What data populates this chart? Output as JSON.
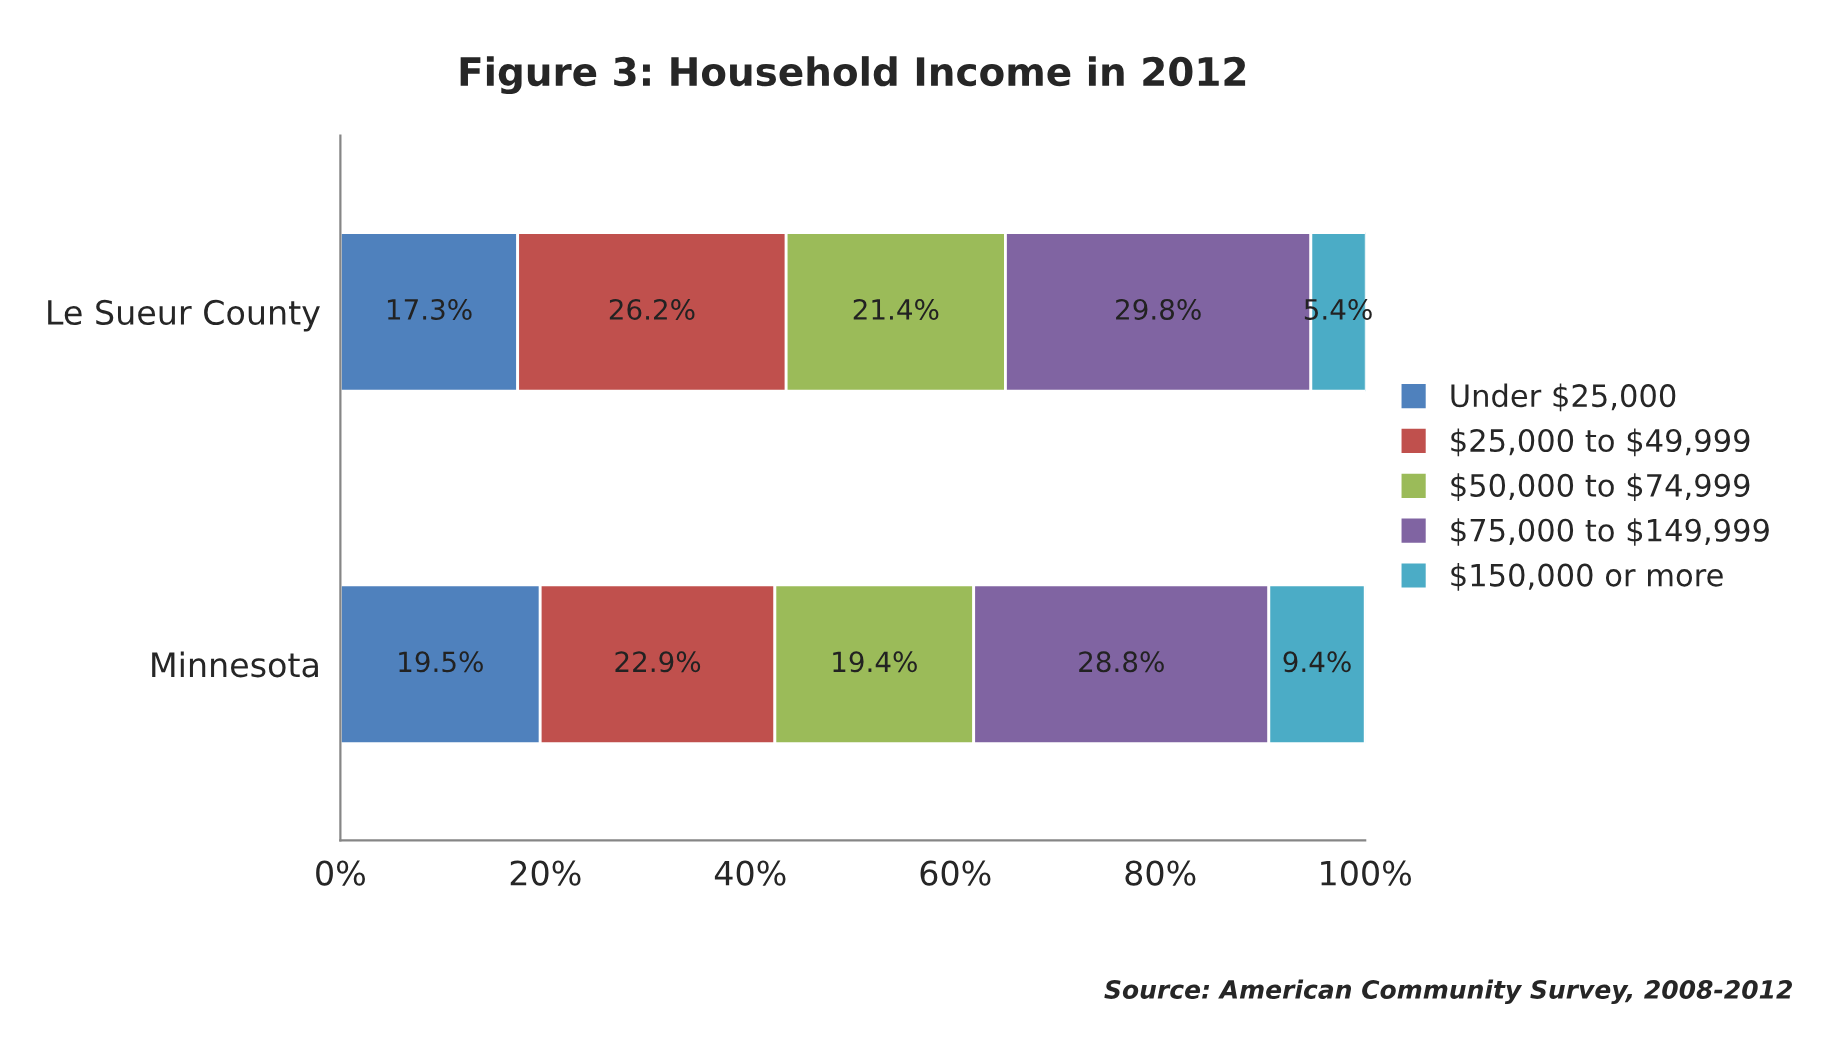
{
  "chart_data": {
    "type": "bar",
    "orientation": "horizontal",
    "stacked": true,
    "title": "Figure 3: Household Income in 2012",
    "categories": [
      "Le Sueur County",
      "Minnesota"
    ],
    "series": [
      {
        "name": "Under $25,000",
        "color": "#4f81bd",
        "values": [
          17.3,
          19.5
        ],
        "value_labels": [
          "17.3%",
          "19.5%"
        ]
      },
      {
        "name": "$25,000 to $49,999",
        "color": "#c0504d",
        "values": [
          26.2,
          22.9
        ],
        "value_labels": [
          "26.2%",
          "22.9%"
        ]
      },
      {
        "name": "$50,000 to $74,999",
        "color": "#9bbb59",
        "values": [
          21.4,
          19.4
        ],
        "value_labels": [
          "21.4%",
          "19.4%"
        ]
      },
      {
        "name": "$75,000 to $149,999",
        "color": "#8064a2",
        "values": [
          29.8,
          28.8
        ],
        "value_labels": [
          "29.8%",
          "28.8%"
        ]
      },
      {
        "name": "$150,000 or more",
        "color": "#4bacc6",
        "values": [
          5.4,
          9.4
        ],
        "value_labels": [
          "5.4%",
          "9.4%"
        ]
      }
    ],
    "xlim": [
      0,
      100
    ],
    "xticks": [
      {
        "value": 0,
        "label": "0%"
      },
      {
        "value": 20,
        "label": "20%"
      },
      {
        "value": 40,
        "label": "40%"
      },
      {
        "value": 60,
        "label": "60%"
      },
      {
        "value": 80,
        "label": "80%"
      },
      {
        "value": 100,
        "label": "100%"
      }
    ],
    "grid": false,
    "legend": "right",
    "annotations": [
      "Source: American Community Survey, 2008-2012"
    ]
  }
}
